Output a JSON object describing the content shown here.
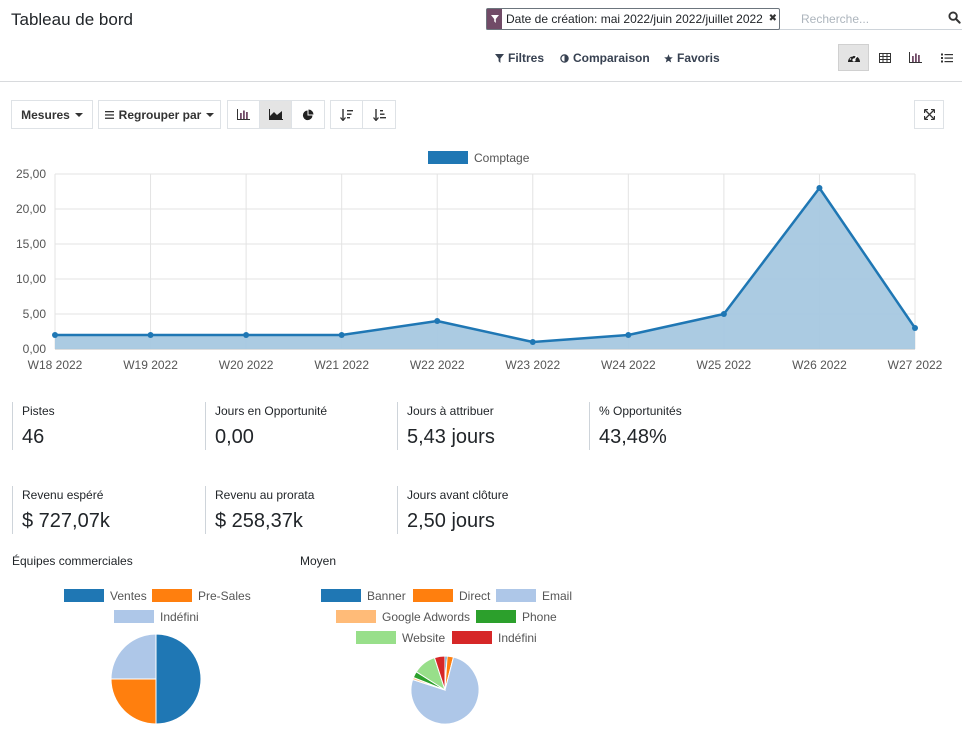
{
  "header": {
    "title": "Tableau de bord"
  },
  "search": {
    "facet_value": "Date de création: mai 2022/juin 2022/juillet 2022",
    "placeholder": "Recherche..."
  },
  "filters": {
    "filters_label": "Filtres",
    "comparison_label": "Comparaison",
    "favorites_label": "Favoris"
  },
  "view_switcher": {
    "active": "dashboard",
    "views": [
      "dashboard",
      "pivot",
      "graph",
      "list"
    ]
  },
  "toolbar": {
    "measures_label": "Mesures",
    "groupby_label": "Regrouper par",
    "chart_types": [
      "bar",
      "line",
      "pie"
    ],
    "active_chart_type": "line",
    "sort": [
      "descending",
      "ascending"
    ]
  },
  "colors": {
    "accent": "#714b67",
    "series": "#1f77b4",
    "area_fill": "#a6c8e0"
  },
  "chart_data": [
    {
      "type": "area",
      "x": [
        "W18 2022",
        "W19 2022",
        "W20 2022",
        "W21 2022",
        "W22 2022",
        "W23 2022",
        "W24 2022",
        "W25 2022",
        "W26 2022",
        "W27 2022"
      ],
      "series": [
        {
          "name": "Comptage",
          "values": [
            2,
            2,
            2,
            2,
            4,
            1,
            2,
            5,
            23,
            3
          ]
        }
      ],
      "ylim": [
        0,
        25
      ],
      "yticks": [
        "0,00",
        "5,00",
        "10,00",
        "15,00",
        "20,00",
        "25,00"
      ],
      "ytick_values": [
        0,
        5,
        10,
        15,
        20,
        25
      ],
      "grid": true,
      "legend": "top-center"
    },
    {
      "type": "pie",
      "title": "Équipes commerciales",
      "labels": [
        "Ventes",
        "Pre-Sales",
        "Indéfini"
      ],
      "values": [
        50,
        25,
        25
      ],
      "colors": [
        "#1f77b4",
        "#ff7f0e",
        "#aec7e8"
      ],
      "legend": "top"
    },
    {
      "type": "pie",
      "title": "Moyen",
      "labels": [
        "Banner",
        "Direct",
        "Email",
        "Google Adwords",
        "Phone",
        "Website",
        "Indéfini"
      ],
      "values": [
        1,
        3,
        76,
        1,
        3,
        11,
        5
      ],
      "colors": [
        "#1f77b4",
        "#ff7f0e",
        "#aec7e8",
        "#ffbb78",
        "#2ca02c",
        "#98df8a",
        "#d62728"
      ],
      "legend": "top"
    }
  ],
  "kpis": [
    {
      "label": "Pistes",
      "value": "46"
    },
    {
      "label": "Jours en Opportunité",
      "value": "0,00"
    },
    {
      "label": "Jours à attribuer",
      "value": "5,43 jours"
    },
    {
      "label": "% Opportunités",
      "value": "43,48%"
    },
    {
      "label": "Revenu espéré",
      "value": "$ 727,07k"
    },
    {
      "label": "Revenu au prorata",
      "value": "$ 258,37k"
    },
    {
      "label": "Jours avant clôture",
      "value": "2,50 jours"
    }
  ]
}
